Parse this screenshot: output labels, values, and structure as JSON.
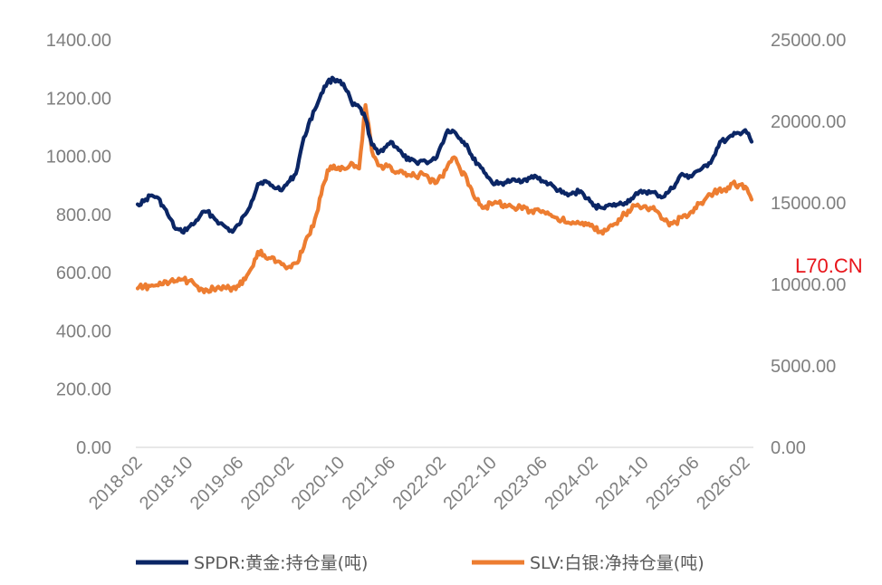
{
  "watermark": "L70.CN",
  "chart_data": {
    "type": "line",
    "title": "",
    "x_start": "2018-02",
    "x_end": "2026-03",
    "x_ticks": [
      "2018-02",
      "2018-10",
      "2019-06",
      "2020-02",
      "2020-10",
      "2021-06",
      "2022-02",
      "2022-10",
      "2023-06",
      "2024-02",
      "2024-10",
      "2025-06",
      "2026-02"
    ],
    "y_left": {
      "ylim": [
        0,
        1400
      ],
      "ticks": [
        "0.00",
        "200.00",
        "400.00",
        "600.00",
        "800.00",
        "1000.00",
        "1200.00",
        "1400.00"
      ]
    },
    "y_right": {
      "ylim": [
        0,
        25000
      ],
      "ticks": [
        "0.00",
        "5000.00",
        "10000.00",
        "15000.00",
        "20000.00",
        "25000.00"
      ]
    },
    "legend_position": "bottom",
    "series": [
      {
        "name": "SPDR:黄金:持仓量(吨)",
        "axis": "left",
        "color": "#0b2665",
        "points": [
          [
            "2018-02",
            835
          ],
          [
            "2018-03",
            845
          ],
          [
            "2018-04",
            865
          ],
          [
            "2018-05",
            860
          ],
          [
            "2018-06",
            830
          ],
          [
            "2018-07",
            790
          ],
          [
            "2018-08",
            750
          ],
          [
            "2018-09",
            740
          ],
          [
            "2018-10",
            755
          ],
          [
            "2018-11",
            770
          ],
          [
            "2018-12",
            800
          ],
          [
            "2019-01",
            810
          ],
          [
            "2019-02",
            790
          ],
          [
            "2019-03",
            770
          ],
          [
            "2019-04",
            755
          ],
          [
            "2019-05",
            740
          ],
          [
            "2019-06",
            765
          ],
          [
            "2019-07",
            800
          ],
          [
            "2019-08",
            845
          ],
          [
            "2019-09",
            905
          ],
          [
            "2019-10",
            915
          ],
          [
            "2019-11",
            900
          ],
          [
            "2019-12",
            890
          ],
          [
            "2020-01",
            890
          ],
          [
            "2020-02",
            915
          ],
          [
            "2020-03",
            940
          ],
          [
            "2020-04",
            1040
          ],
          [
            "2020-05",
            1110
          ],
          [
            "2020-06",
            1160
          ],
          [
            "2020-07",
            1215
          ],
          [
            "2020-08",
            1255
          ],
          [
            "2020-09",
            1265
          ],
          [
            "2020-10",
            1260
          ],
          [
            "2020-11",
            1225
          ],
          [
            "2020-12",
            1175
          ],
          [
            "2021-01",
            1170
          ],
          [
            "2021-02",
            1130
          ],
          [
            "2021-03",
            1040
          ],
          [
            "2021-04",
            1010
          ],
          [
            "2021-05",
            1030
          ],
          [
            "2021-06",
            1050
          ],
          [
            "2021-07",
            1030
          ],
          [
            "2021-08",
            1000
          ],
          [
            "2021-09",
            985
          ],
          [
            "2021-10",
            980
          ],
          [
            "2021-11",
            985
          ],
          [
            "2021-12",
            980
          ],
          [
            "2022-01",
            990
          ],
          [
            "2022-02",
            1040
          ],
          [
            "2022-03",
            1090
          ],
          [
            "2022-04",
            1085
          ],
          [
            "2022-05",
            1060
          ],
          [
            "2022-06",
            1040
          ],
          [
            "2022-07",
            990
          ],
          [
            "2022-08",
            970
          ],
          [
            "2022-09",
            940
          ],
          [
            "2022-10",
            910
          ],
          [
            "2022-11",
            905
          ],
          [
            "2022-12",
            910
          ],
          [
            "2023-01",
            915
          ],
          [
            "2023-02",
            915
          ],
          [
            "2023-03",
            920
          ],
          [
            "2023-04",
            925
          ],
          [
            "2023-05",
            930
          ],
          [
            "2023-06",
            915
          ],
          [
            "2023-07",
            905
          ],
          [
            "2023-08",
            890
          ],
          [
            "2023-09",
            875
          ],
          [
            "2023-10",
            865
          ],
          [
            "2023-11",
            875
          ],
          [
            "2023-12",
            880
          ],
          [
            "2024-01",
            855
          ],
          [
            "2024-02",
            830
          ],
          [
            "2024-03",
            825
          ],
          [
            "2024-04",
            830
          ],
          [
            "2024-05",
            830
          ],
          [
            "2024-06",
            835
          ],
          [
            "2024-07",
            840
          ],
          [
            "2024-08",
            855
          ],
          [
            "2024-09",
            870
          ],
          [
            "2024-10",
            880
          ],
          [
            "2024-11",
            875
          ],
          [
            "2024-12",
            870
          ],
          [
            "2025-01",
            860
          ],
          [
            "2025-02",
            880
          ],
          [
            "2025-03",
            905
          ],
          [
            "2025-04",
            940
          ],
          [
            "2025-05",
            925
          ],
          [
            "2025-06",
            945
          ],
          [
            "2025-07",
            955
          ],
          [
            "2025-08",
            965
          ],
          [
            "2025-09",
            1000
          ],
          [
            "2025-10",
            1050
          ],
          [
            "2025-11",
            1055
          ],
          [
            "2025-12",
            1070
          ],
          [
            "2026-01",
            1080
          ],
          [
            "2026-02",
            1090
          ],
          [
            "2026-03",
            1050
          ]
        ]
      },
      {
        "name": "SLV:白银:净持仓量(吨)",
        "axis": "right",
        "color": "#ed7d31",
        "points": [
          [
            "2018-02",
            9750
          ],
          [
            "2018-03",
            9850
          ],
          [
            "2018-04",
            9900
          ],
          [
            "2018-05",
            9950
          ],
          [
            "2018-06",
            10000
          ],
          [
            "2018-07",
            10100
          ],
          [
            "2018-08",
            10200
          ],
          [
            "2018-09",
            10300
          ],
          [
            "2018-10",
            10200
          ],
          [
            "2018-11",
            10000
          ],
          [
            "2018-12",
            9750
          ],
          [
            "2019-01",
            9650
          ],
          [
            "2019-02",
            9700
          ],
          [
            "2019-03",
            9750
          ],
          [
            "2019-04",
            9750
          ],
          [
            "2019-05",
            9800
          ],
          [
            "2019-06",
            9900
          ],
          [
            "2019-07",
            10300
          ],
          [
            "2019-08",
            11000
          ],
          [
            "2019-09",
            12000
          ],
          [
            "2019-10",
            11800
          ],
          [
            "2019-11",
            11600
          ],
          [
            "2019-12",
            11400
          ],
          [
            "2020-01",
            11250
          ],
          [
            "2020-02",
            11100
          ],
          [
            "2020-03",
            11300
          ],
          [
            "2020-04",
            12000
          ],
          [
            "2020-05",
            13000
          ],
          [
            "2020-06",
            14000
          ],
          [
            "2020-07",
            15500
          ],
          [
            "2020-08",
            17000
          ],
          [
            "2020-09",
            17300
          ],
          [
            "2020-10",
            17000
          ],
          [
            "2020-11",
            17100
          ],
          [
            "2020-12",
            17400
          ],
          [
            "2021-01",
            17100
          ],
          [
            "2021-02",
            21000
          ],
          [
            "2021-03",
            18200
          ],
          [
            "2021-04",
            17300
          ],
          [
            "2021-05",
            17200
          ],
          [
            "2021-06",
            17200
          ],
          [
            "2021-07",
            16900
          ],
          [
            "2021-08",
            16800
          ],
          [
            "2021-09",
            16700
          ],
          [
            "2021-10",
            16600
          ],
          [
            "2021-11",
            16800
          ],
          [
            "2021-12",
            16500
          ],
          [
            "2022-01",
            16200
          ],
          [
            "2022-02",
            16600
          ],
          [
            "2022-03",
            17300
          ],
          [
            "2022-04",
            17800
          ],
          [
            "2022-05",
            17000
          ],
          [
            "2022-06",
            16500
          ],
          [
            "2022-07",
            15500
          ],
          [
            "2022-08",
            14900
          ],
          [
            "2022-09",
            14800
          ],
          [
            "2022-10",
            14900
          ],
          [
            "2022-11",
            15000
          ],
          [
            "2022-12",
            14900
          ],
          [
            "2022-13",
            14800
          ],
          [
            "2023-02",
            14650
          ],
          [
            "2023-03",
            14800
          ],
          [
            "2023-04",
            14500
          ],
          [
            "2023-05",
            14600
          ],
          [
            "2023-06",
            14500
          ],
          [
            "2023-07",
            14300
          ],
          [
            "2023-08",
            14100
          ],
          [
            "2023-09",
            13950
          ],
          [
            "2023-10",
            13800
          ],
          [
            "2023-11",
            13750
          ],
          [
            "2023-12",
            13700
          ],
          [
            "2024-01",
            13650
          ],
          [
            "2024-02",
            13500
          ],
          [
            "2024-03",
            13200
          ],
          [
            "2024-04",
            13300
          ],
          [
            "2024-05",
            13600
          ],
          [
            "2024-06",
            14000
          ],
          [
            "2024-07",
            14300
          ],
          [
            "2024-08",
            14600
          ],
          [
            "2024-09",
            14900
          ],
          [
            "2024-10",
            14800
          ],
          [
            "2024-11",
            14700
          ],
          [
            "2024-12",
            14500
          ],
          [
            "2025-01",
            14000
          ],
          [
            "2025-02",
            13600
          ],
          [
            "2025-03",
            13800
          ],
          [
            "2025-04",
            14100
          ],
          [
            "2025-05",
            14200
          ],
          [
            "2025-06",
            14700
          ],
          [
            "2025-07",
            15000
          ],
          [
            "2025-08",
            15400
          ],
          [
            "2025-09",
            15600
          ],
          [
            "2025-10",
            15900
          ],
          [
            "2025-11",
            15700
          ],
          [
            "2025-12",
            16200
          ],
          [
            "2026-01",
            16100
          ],
          [
            "2026-02",
            16000
          ],
          [
            "2026-03",
            15200
          ]
        ]
      }
    ]
  }
}
